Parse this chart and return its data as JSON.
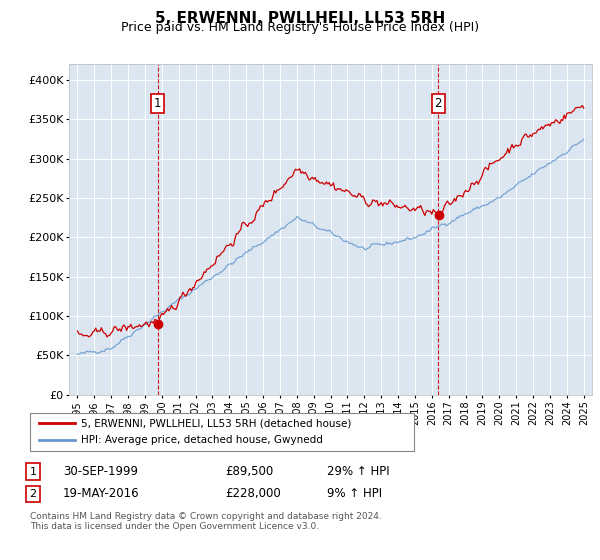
{
  "title": "5, ERWENNI, PWLLHELI, LL53 5RH",
  "subtitle": "Price paid vs. HM Land Registry's House Price Index (HPI)",
  "legend_line1": "5, ERWENNI, PWLLHELI, LL53 5RH (detached house)",
  "legend_line2": "HPI: Average price, detached house, Gwynedd",
  "sale1_date": "30-SEP-1999",
  "sale1_price": "£89,500",
  "sale1_hpi": "29% ↑ HPI",
  "sale2_date": "19-MAY-2016",
  "sale2_price": "£228,000",
  "sale2_hpi": "9% ↑ HPI",
  "footnote1": "Contains HM Land Registry data © Crown copyright and database right 2024.",
  "footnote2": "This data is licensed under the Open Government Licence v3.0.",
  "property_color": "#cc0000",
  "hpi_color": "#6699cc",
  "background_color": "#dce6f1",
  "marker1_year": 1999.75,
  "marker2_year": 2016.38,
  "sale1_price_val": 89500,
  "sale2_price_val": 228000,
  "ylim": [
    0,
    420000
  ],
  "yticks": [
    0,
    50000,
    100000,
    150000,
    200000,
    250000,
    300000,
    350000,
    400000
  ],
  "xstart": 1994.5,
  "xend": 2025.5
}
